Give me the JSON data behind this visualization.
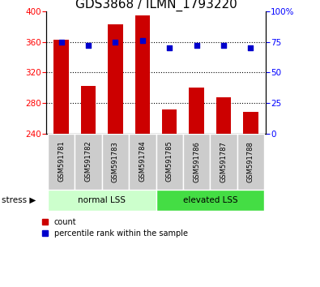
{
  "title": "GDS3868 / ILMN_1793220",
  "samples": [
    "GSM591781",
    "GSM591782",
    "GSM591783",
    "GSM591784",
    "GSM591785",
    "GSM591786",
    "GSM591787",
    "GSM591788"
  ],
  "counts": [
    363,
    302,
    383,
    395,
    272,
    300,
    287,
    268
  ],
  "percentiles": [
    75,
    72,
    75,
    76,
    70,
    72,
    72,
    70
  ],
  "bar_color": "#CC0000",
  "dot_color": "#0000CC",
  "ylim_left": [
    240,
    400
  ],
  "ylim_right": [
    0,
    100
  ],
  "yticks_left": [
    240,
    280,
    320,
    360,
    400
  ],
  "yticks_right": [
    0,
    25,
    50,
    75,
    100
  ],
  "ytick_right_labels": [
    "0",
    "25",
    "50",
    "75",
    "100%"
  ],
  "grid_lines": [
    280,
    320,
    360
  ],
  "legend_count": "count",
  "legend_pct": "percentile rank within the sample",
  "bar_width": 0.55,
  "title_fontsize": 11,
  "group_normal_color": "#CCFFCC",
  "group_elevated_color": "#44DD44",
  "label_box_color": "#CCCCCC"
}
